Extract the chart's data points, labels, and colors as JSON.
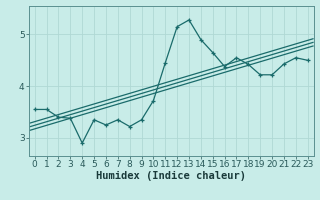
{
  "xlabel": "Humidex (Indice chaleur)",
  "ylabel": "",
  "background_color": "#c8ece8",
  "grid_color": "#b0d8d4",
  "line_color": "#1a6b6b",
  "x_data": [
    0,
    1,
    2,
    3,
    4,
    5,
    6,
    7,
    8,
    9,
    10,
    11,
    12,
    13,
    14,
    15,
    16,
    17,
    18,
    19,
    20,
    21,
    22,
    23
  ],
  "y_data": [
    3.55,
    3.55,
    3.4,
    3.38,
    2.9,
    3.35,
    3.25,
    3.35,
    3.22,
    3.35,
    3.72,
    4.45,
    5.15,
    5.28,
    4.9,
    4.65,
    4.38,
    4.55,
    4.42,
    4.22,
    4.22,
    4.43,
    4.55,
    4.5
  ],
  "ylim": [
    2.65,
    5.55
  ],
  "xlim": [
    -0.5,
    23.5
  ],
  "yticks": [
    3,
    4,
    5
  ],
  "xtick_labels": [
    "0",
    "1",
    "2",
    "3",
    "4",
    "5",
    "6",
    "7",
    "8",
    "9",
    "10",
    "11",
    "12",
    "13",
    "14",
    "15",
    "16",
    "17",
    "18",
    "19",
    "20",
    "21",
    "22",
    "23"
  ],
  "regression_offsets": [
    -0.07,
    0.0,
    0.07
  ],
  "line_color_reg": "#1a6b6b",
  "tick_fontsize": 6.5,
  "xlabel_fontsize": 7.5,
  "xlabel_fontweight": "bold"
}
